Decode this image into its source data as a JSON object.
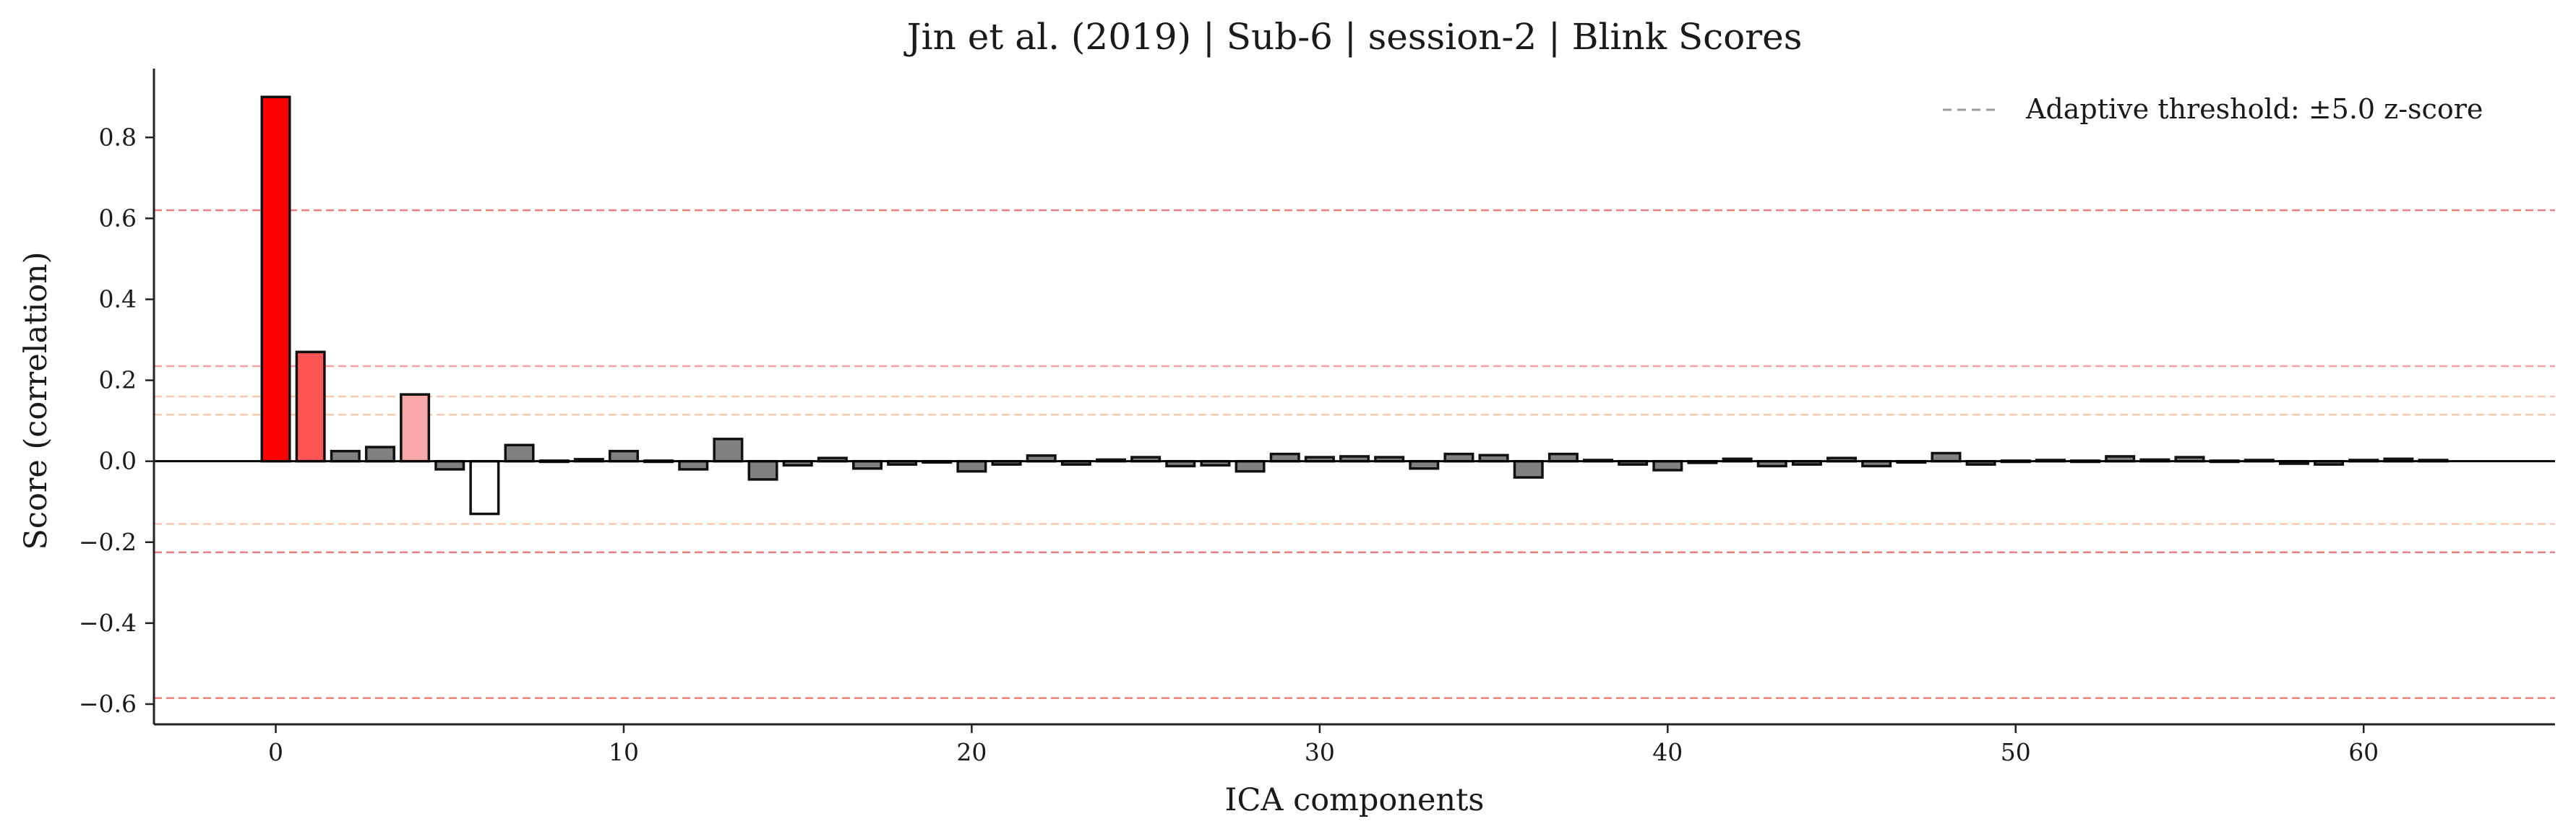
{
  "chart_data": {
    "type": "bar",
    "title": "Jin et al. (2019) | Sub-6 | session-2 | Blink Scores",
    "xlabel": "ICA components",
    "ylabel": "Score (correlation)",
    "xlim": [
      -3.5,
      65.5
    ],
    "ylim": [
      -0.65,
      0.97
    ],
    "xticks": [
      0,
      10,
      20,
      30,
      40,
      50,
      60
    ],
    "xtick_labels": [
      "0",
      "10",
      "20",
      "30",
      "40",
      "50",
      "60"
    ],
    "yticks": [
      -0.6,
      -0.4,
      -0.2,
      0.0,
      0.2,
      0.4,
      0.6,
      0.8
    ],
    "ytick_labels": [
      "−0.6",
      "−0.4",
      "−0.2",
      "0.0",
      "0.2",
      "0.4",
      "0.6",
      "0.8"
    ],
    "grid": false,
    "legend": {
      "position": "top-right",
      "entries": [
        "Adaptive threshold: ±5.0 z-score"
      ]
    },
    "threshold_lines": [
      0.62,
      0.235,
      0.16,
      0.115,
      -0.155,
      -0.225,
      -0.585
    ],
    "threshold_colors": [
      "#f08080",
      "#f4a0a0",
      "#f8c8b0",
      "#f8c8b0",
      "#f8c8b0",
      "#f08080",
      "#f08080"
    ],
    "components": [
      0,
      1,
      2,
      3,
      4,
      5,
      6,
      7,
      8,
      9,
      10,
      11,
      12,
      13,
      14,
      15,
      16,
      17,
      18,
      19,
      20,
      21,
      22,
      23,
      24,
      25,
      26,
      27,
      28,
      29,
      30,
      31,
      32,
      33,
      34,
      35,
      36,
      37,
      38,
      39,
      40,
      41,
      42,
      43,
      44,
      45,
      46,
      47,
      48,
      49,
      50,
      51,
      52,
      53,
      54,
      55,
      56,
      57,
      58,
      59,
      60,
      61,
      62
    ],
    "values": [
      0.9,
      0.27,
      0.025,
      0.035,
      0.165,
      -0.02,
      -0.13,
      0.04,
      0.0,
      0.005,
      0.025,
      0.0,
      -0.02,
      0.055,
      -0.045,
      -0.01,
      0.008,
      -0.018,
      -0.008,
      -0.003,
      -0.025,
      -0.008,
      0.014,
      -0.008,
      0.004,
      0.01,
      -0.012,
      -0.01,
      -0.025,
      0.018,
      0.01,
      0.012,
      0.01,
      -0.018,
      0.018,
      0.015,
      -0.04,
      0.018,
      0.003,
      -0.008,
      -0.022,
      -0.004,
      0.006,
      -0.012,
      -0.008,
      0.008,
      -0.012,
      -0.003,
      0.02,
      -0.008,
      0.0,
      0.003,
      0.0,
      0.012,
      0.004,
      0.01,
      0.002,
      0.003,
      -0.006,
      -0.008,
      0.003,
      0.006,
      0.003
    ],
    "bar_colors": [
      "#ff0000",
      "#ff5555",
      "#808080",
      "#808080",
      "#f8a8a8",
      "#808080",
      "#ffffff",
      "#808080",
      "#808080",
      "#808080",
      "#808080",
      "#808080",
      "#808080",
      "#808080",
      "#808080",
      "#808080",
      "#808080",
      "#808080",
      "#808080",
      "#808080",
      "#808080",
      "#808080",
      "#808080",
      "#808080",
      "#808080",
      "#808080",
      "#808080",
      "#808080",
      "#808080",
      "#808080",
      "#808080",
      "#808080",
      "#808080",
      "#808080",
      "#808080",
      "#808080",
      "#808080",
      "#808080",
      "#808080",
      "#808080",
      "#808080",
      "#808080",
      "#808080",
      "#808080",
      "#808080",
      "#808080",
      "#808080",
      "#808080",
      "#808080",
      "#808080",
      "#808080",
      "#808080",
      "#808080",
      "#808080",
      "#808080",
      "#808080",
      "#808080",
      "#808080",
      "#808080",
      "#808080",
      "#808080",
      "#808080",
      "#808080"
    ],
    "legend_line_color": "#999999"
  }
}
